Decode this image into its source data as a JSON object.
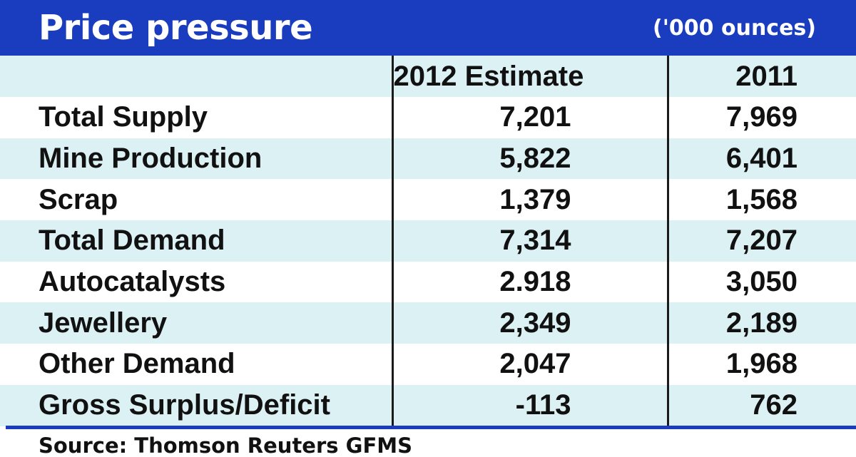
{
  "header": {
    "title": "Price pressure",
    "unit": "('000 ounces)"
  },
  "colors": {
    "header_bg": "#1a3dbf",
    "band_bg": "#dcf1f4",
    "rule": "#1a3dbf"
  },
  "chart_data": {
    "type": "table",
    "title": "Price pressure",
    "unit": "('000 ounces)",
    "columns": [
      "",
      "2012 Estimate",
      "2011"
    ],
    "rows": [
      {
        "label": "Total Supply",
        "estimate_2012": "7,201",
        "y2011": "7,969"
      },
      {
        "label": "Mine Production",
        "estimate_2012": "5,822",
        "y2011": "6,401"
      },
      {
        "label": "Scrap",
        "estimate_2012": "1,379",
        "y2011": "1,568"
      },
      {
        "label": "Total Demand",
        "estimate_2012": "7,314",
        "y2011": "7,207"
      },
      {
        "label": "Autocatalysts",
        "estimate_2012": "2.918",
        "y2011": "3,050"
      },
      {
        "label": "Jewellery",
        "estimate_2012": "2,349",
        "y2011": "2,189"
      },
      {
        "label": "Other Demand",
        "estimate_2012": "2,047",
        "y2011": "1,968"
      },
      {
        "label": "Gross Surplus/Deficit",
        "estimate_2012": "-113",
        "y2011": "762"
      }
    ],
    "source": "Source: Thomson Reuters GFMS"
  }
}
